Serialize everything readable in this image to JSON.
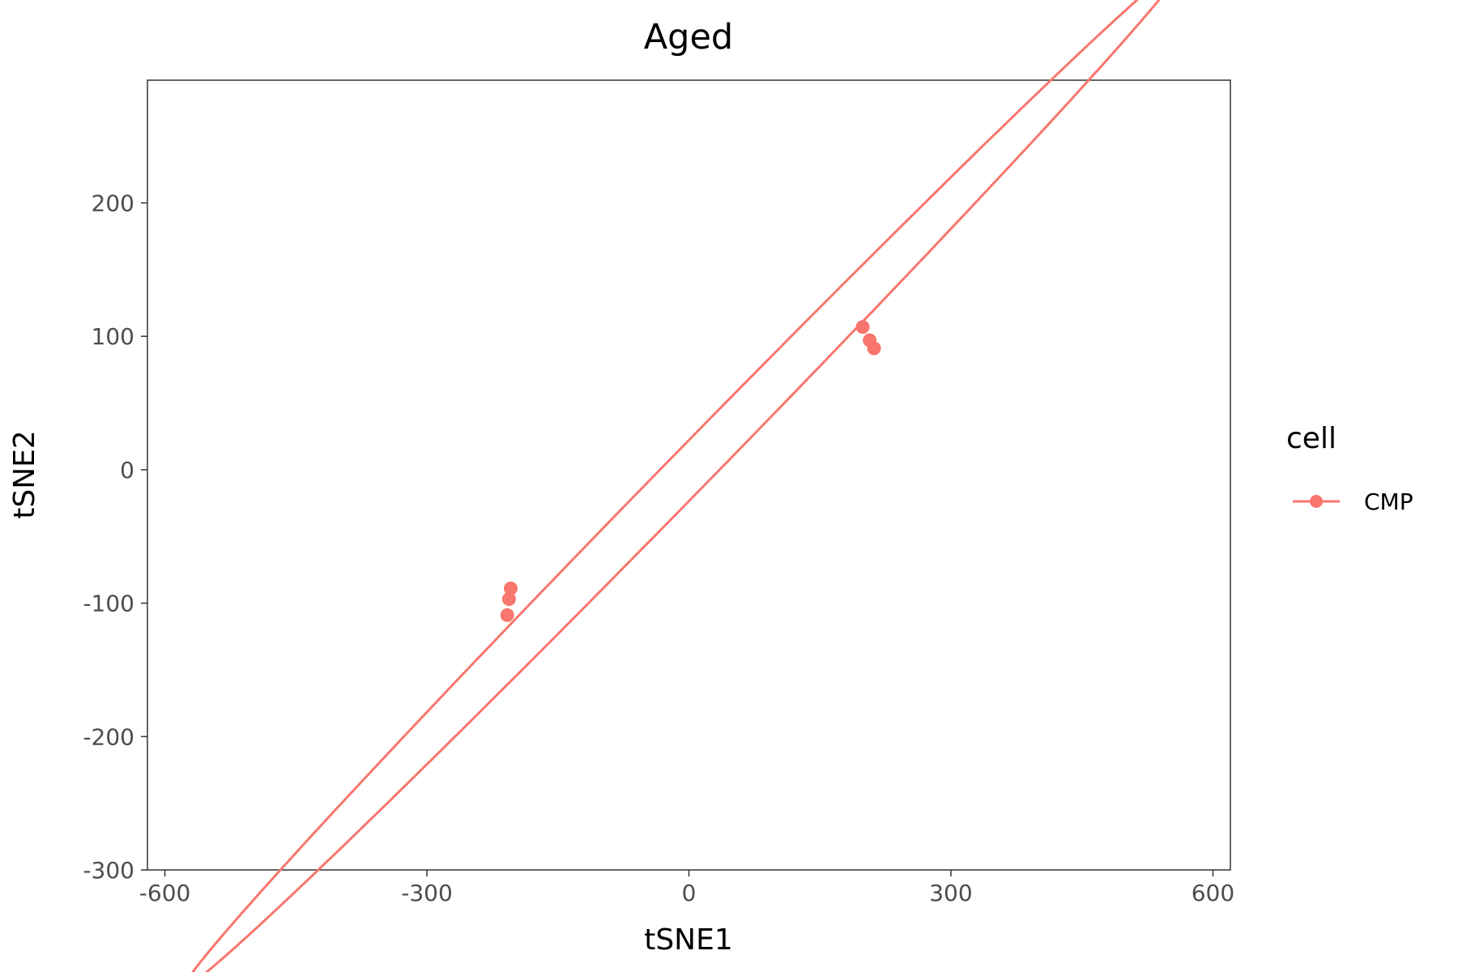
{
  "chart_data": {
    "type": "scatter",
    "title": "Aged",
    "xlabel": "tSNE1",
    "ylabel": "tSNE2",
    "xlim": [
      -620,
      620
    ],
    "ylim": [
      -300,
      292
    ],
    "x_ticks": [
      -600,
      -300,
      0,
      300,
      600
    ],
    "y_ticks": [
      -300,
      -200,
      -100,
      0,
      100,
      200
    ],
    "grid": false,
    "legend": {
      "title": "cell",
      "position": "right"
    },
    "series": [
      {
        "name": "CMP",
        "color": "#F8766D",
        "points": [
          {
            "x": 199,
            "y": 107
          },
          {
            "x": 207,
            "y": 97
          },
          {
            "x": 212,
            "y": 91
          },
          {
            "x": -204,
            "y": -89
          },
          {
            "x": -206,
            "y": -97
          },
          {
            "x": -208,
            "y": -109
          }
        ],
        "ellipse": {
          "center": [
            -5,
            -4
          ],
          "semi_major": 688,
          "semi_minor": 19,
          "angle_deg": 33.8
        }
      }
    ]
  }
}
